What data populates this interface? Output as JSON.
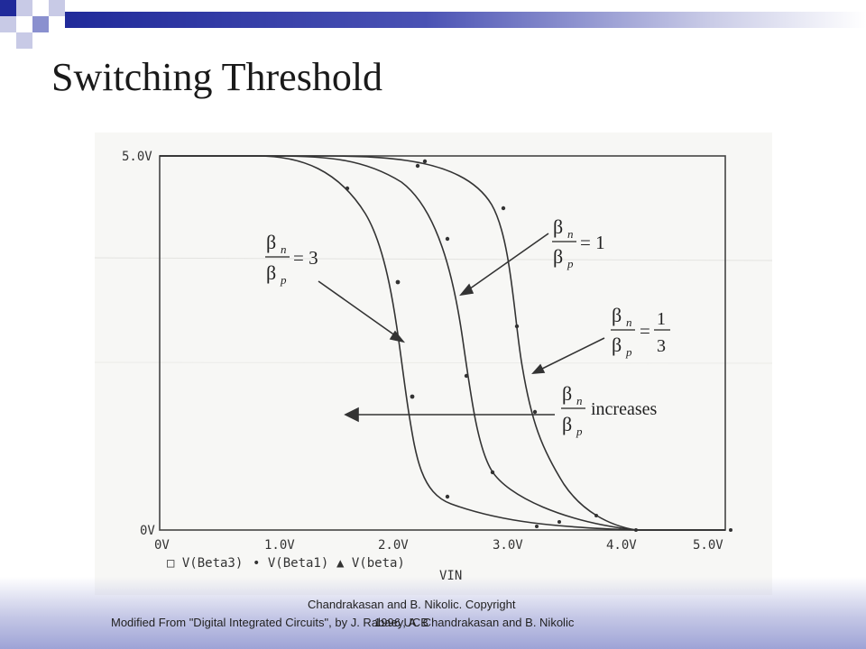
{
  "slide": {
    "title": "Switching Threshold",
    "colors": {
      "bar": "#202a9a",
      "bar_light": "#c8cae6",
      "footer": "#aeb2dd"
    }
  },
  "figure": {
    "y_labels": [
      "5.0V",
      "0V"
    ],
    "x_labels": [
      "0V",
      "1.0V",
      "2.0V",
      "3.0V",
      "4.0V",
      "5.0V"
    ],
    "legend": [
      "□ V(Beta3)",
      "• V(Beta1)",
      "▲ V(beta)"
    ],
    "xaxis_label": "VIN",
    "annotations": {
      "beta3": {
        "num": "β",
        "num_sub": "n",
        "den": "β",
        "den_sub": "p",
        "value": "= 3"
      },
      "beta1": {
        "num": "β",
        "num_sub": "n",
        "den": "β",
        "den_sub": "p",
        "value": "= 1"
      },
      "beta13": {
        "num": "β",
        "num_sub": "n",
        "den": "β",
        "den_sub": "p",
        "eq": "=",
        "frac_num": "1",
        "frac_den": "3"
      },
      "increases": {
        "num": "β",
        "num_sub": "n",
        "den": "β",
        "den_sub": "p",
        "text": "increases"
      }
    }
  },
  "footer": {
    "line1": "Chandrakasan and B. Nikolic. Copyright",
    "line2": "Modified From \"Digital Integrated Circuits\", by J. Rabaey, A. Chandrakasan and B. Nikolic",
    "line3": "1996 UCB"
  }
}
